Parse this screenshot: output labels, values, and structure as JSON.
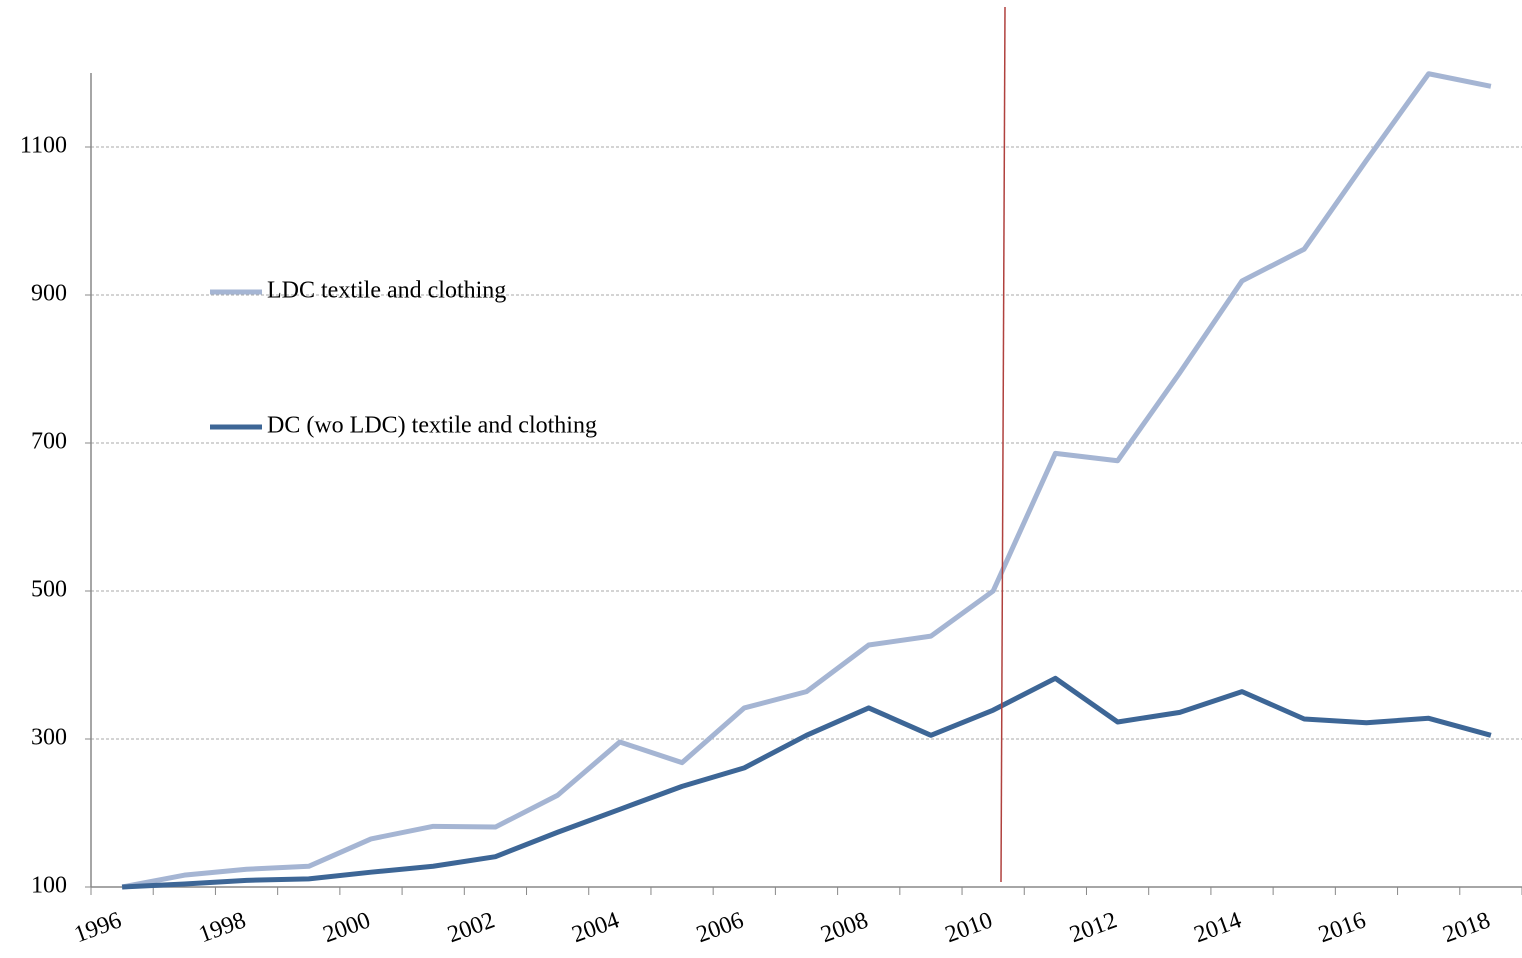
{
  "chart_data": {
    "type": "line",
    "categories": [
      "1996",
      null,
      "1998",
      null,
      "2000",
      null,
      "2002",
      null,
      "2004",
      null,
      "2006",
      null,
      "2008",
      null,
      "2010",
      null,
      "2012",
      null,
      "2014",
      null,
      "2016",
      null,
      "2018"
    ],
    "series": [
      {
        "name": "LDC textile and clothing",
        "color": "#a5b5d3",
        "values": [
          100,
          116,
          124,
          128,
          165,
          182,
          181,
          224,
          296,
          268,
          342,
          364,
          427,
          439,
          500,
          686,
          676,
          795,
          919,
          962,
          1082,
          1199,
          1182
        ]
      },
      {
        "name": "DC (wo LDC) textile and clothing",
        "color": "#3d6696",
        "values": [
          100,
          104,
          109,
          111,
          120,
          128,
          141,
          174,
          205,
          236,
          261,
          305,
          342,
          305,
          339,
          382,
          323,
          336,
          364,
          327,
          322,
          328,
          305
        ]
      }
    ],
    "ylim": [
      100,
      1200
    ],
    "yticks": [
      100,
      300,
      500,
      700,
      900,
      1100
    ],
    "grid": true
  }
}
